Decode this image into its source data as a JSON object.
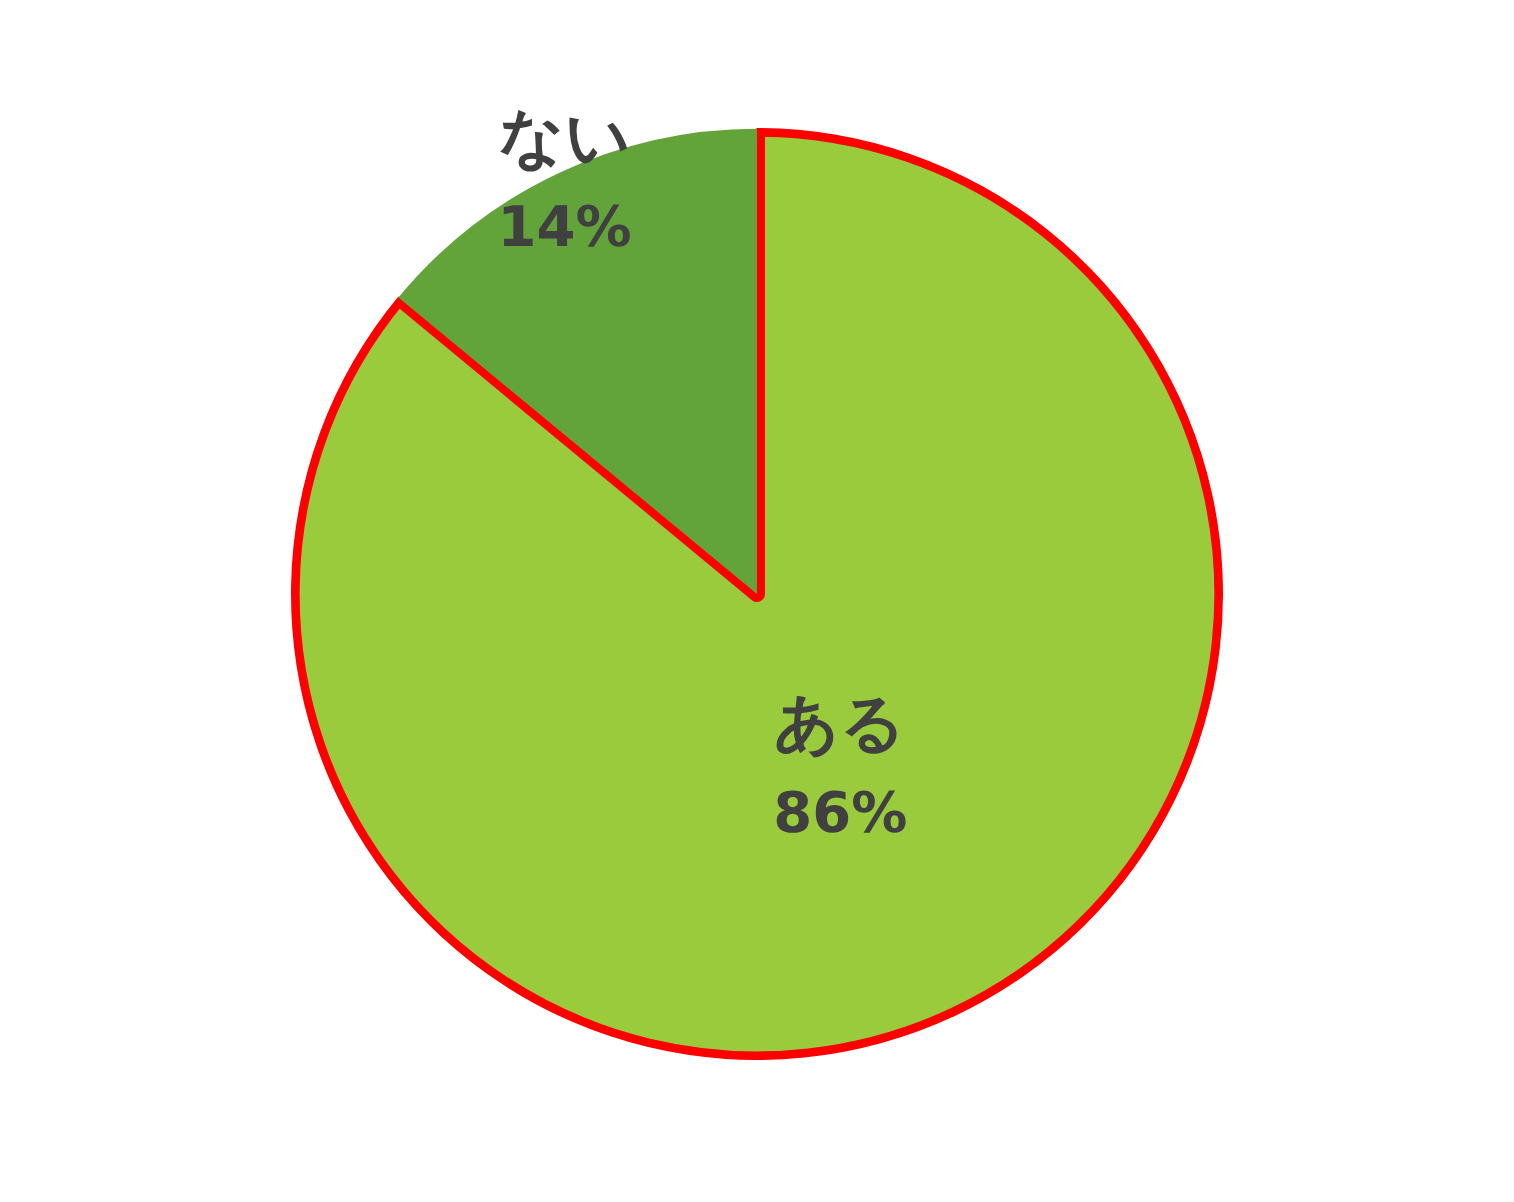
{
  "chart_data": {
    "type": "pie",
    "categories": [
      "ある",
      "ない"
    ],
    "values": [
      86,
      14
    ],
    "colors": [
      "#9acb3c",
      "#62a33a"
    ],
    "value_labels": [
      "86%",
      "14%"
    ],
    "legend": false
  }
}
